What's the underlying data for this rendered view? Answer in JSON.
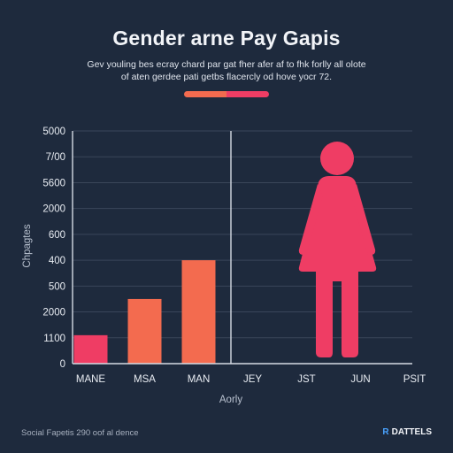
{
  "header": {
    "title": "Gender arne Pay Gapis",
    "subtitle_line1": "Gev youling bes ecray chard par gat fher afer af to fhk forlly all olote",
    "subtitle_line2": "of aten gerdee pati getbs flacercly od hove yocr 72.",
    "accent_colors": [
      "#f36b4f",
      "#ef3d64"
    ]
  },
  "chart_data": {
    "type": "bar",
    "categories": [
      "MANE",
      "MSA",
      "MAN",
      "JEY",
      "JST",
      "JUN",
      "PSIT"
    ],
    "ytick_labels": [
      "5000",
      "7/00",
      "5600",
      "2000",
      "600",
      "400",
      "500",
      "2000",
      "1100",
      "0"
    ],
    "values": [
      1.1,
      2.5,
      4,
      null,
      null,
      null,
      null
    ],
    "bar_colors": [
      "#ef3d64",
      "#f36b4f",
      "#f36b4f"
    ],
    "ylabel": "Chpagtes",
    "xlabel": "Aorly",
    "figure": {
      "icon": "woman-figure-icon",
      "category": "JUN",
      "color": "#ef3d64"
    },
    "grid": "horizontal"
  },
  "footer": {
    "source": "Social Fapetis 290 oof al dence",
    "brand": "DATTELS",
    "brand_prefix": "R"
  }
}
